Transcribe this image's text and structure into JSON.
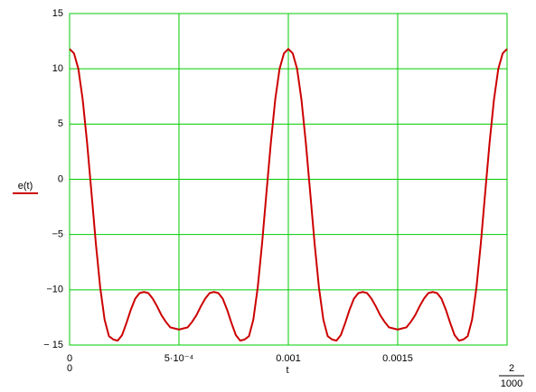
{
  "chart_data": {
    "type": "line",
    "xlabel": "t",
    "x": [
      0,
      2e-05,
      4e-05,
      6e-05,
      8e-05,
      0.0001,
      0.00012,
      0.00014,
      0.00016,
      0.00018,
      0.0002,
      0.00022,
      0.00024,
      0.00026,
      0.00028,
      0.0003,
      0.00032,
      0.00034,
      0.00036,
      0.00038,
      0.0004,
      0.00042,
      0.00044,
      0.00046,
      0.00048,
      0.0005,
      0.00052,
      0.00054,
      0.00056,
      0.00058,
      0.0006,
      0.00062,
      0.00064,
      0.00066,
      0.00068,
      0.0007,
      0.00072,
      0.00074,
      0.00076,
      0.00078,
      0.0008,
      0.00082,
      0.00084,
      0.00086,
      0.00088,
      0.0009,
      0.00092,
      0.00094,
      0.00096,
      0.00098,
      0.001,
      0.00102,
      0.00104,
      0.00106,
      0.00108,
      0.0011,
      0.00112,
      0.00114,
      0.00116,
      0.00118,
      0.0012,
      0.00122,
      0.00124,
      0.00126,
      0.00128,
      0.0013,
      0.00132,
      0.00134,
      0.00136,
      0.00138,
      0.0014,
      0.00142,
      0.00144,
      0.00146,
      0.00148,
      0.0015,
      0.00152,
      0.00154,
      0.00156,
      0.00158,
      0.0016,
      0.00162,
      0.00164,
      0.00166,
      0.00168,
      0.0017,
      0.00172,
      0.00174,
      0.00176,
      0.00178,
      0.0018,
      0.00182,
      0.00184,
      0.00186,
      0.00188,
      0.0019,
      0.00192,
      0.00194,
      0.00196,
      0.00198,
      0.002
    ],
    "series": [
      {
        "name": "e(t)",
        "color": "#cc0000",
        "values": [
          11.8,
          11.4,
          10,
          7.2,
          3.3,
          -1.2,
          -5.8,
          -9.8,
          -12.7,
          -14.2,
          -14.5,
          -14.6,
          -14.1,
          -13,
          -11.8,
          -10.8,
          -10.3,
          -10.2,
          -10.3,
          -10.8,
          -11.5,
          -12.3,
          -12.9,
          -13.4,
          -13.5,
          -13.6,
          -13.5,
          -13.4,
          -12.9,
          -12.3,
          -11.5,
          -10.8,
          -10.3,
          -10.2,
          -10.3,
          -10.8,
          -11.8,
          -13,
          -14.1,
          -14.6,
          -14.5,
          -14.2,
          -12.7,
          -9.8,
          -5.8,
          -1.2,
          3.3,
          7.2,
          10,
          11.4,
          11.8,
          11.4,
          10,
          7.2,
          3.3,
          -1.2,
          -5.8,
          -9.8,
          -12.7,
          -14.2,
          -14.5,
          -14.6,
          -14.1,
          -13,
          -11.8,
          -10.8,
          -10.3,
          -10.2,
          -10.3,
          -10.8,
          -11.5,
          -12.3,
          -12.9,
          -13.4,
          -13.5,
          -13.6,
          -13.5,
          -13.4,
          -12.9,
          -12.3,
          -11.5,
          -10.8,
          -10.3,
          -10.2,
          -10.3,
          -10.8,
          -11.8,
          -13,
          -14.1,
          -14.6,
          -14.5,
          -14.2,
          -12.7,
          -9.8,
          -5.8,
          -1.2,
          3.3,
          7.2,
          10,
          11.4,
          11.8
        ]
      }
    ],
    "xlim": [
      0,
      0.002
    ],
    "xlim_labels": {
      "left": "0",
      "right_numerator": "2",
      "right_denominator": "1000"
    },
    "xticks": [
      0,
      {
        "value": 0.0005,
        "label": "5·10⁻⁴"
      },
      0.001,
      0.0015
    ],
    "ylim": [
      -15,
      15
    ],
    "yticks": [
      15,
      10,
      5,
      0,
      {
        "value": -5,
        "label": "−5"
      },
      {
        "value": -10,
        "label": "−10"
      },
      {
        "value": -15,
        "label": "− 15"
      }
    ],
    "grid": true,
    "grid_color": "#00cc00"
  }
}
